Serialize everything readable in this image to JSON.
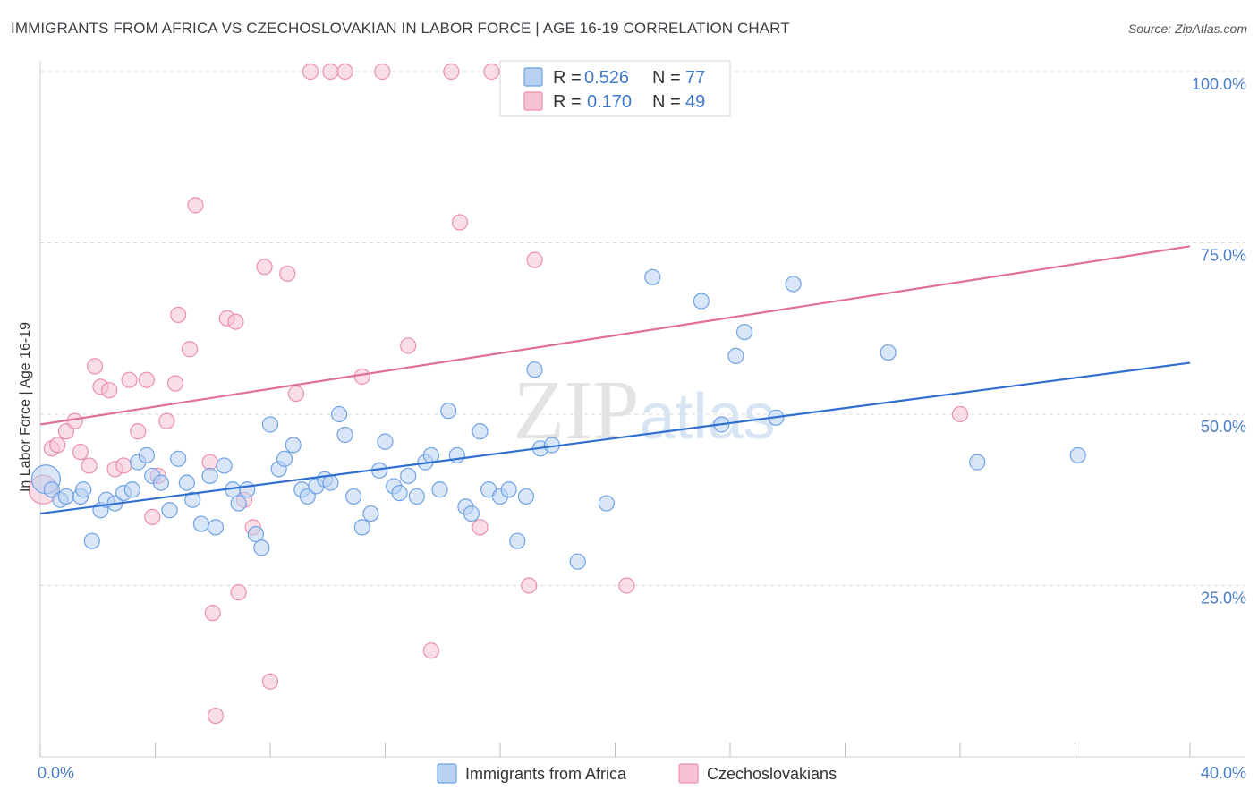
{
  "title": "IMMIGRANTS FROM AFRICA VS CZECHOSLOVAKIAN IN LABOR FORCE | AGE 16-19 CORRELATION CHART",
  "source": "Source: ZipAtlas.com",
  "colors": {
    "blue": "#6ea2e6",
    "blue_fill": "#b9d2f3",
    "blue_line": "#2f6fcf",
    "pink": "#ec8fab",
    "pink_fill": "#f6c3d2",
    "pink_line": "#e07098",
    "tick_text": "#4a7cc7",
    "grid": "#d8d8d8"
  },
  "legend": {
    "rows": [
      {
        "r_label": "R =",
        "r_value": "0.526",
        "n_label": "N =",
        "n_value": "77"
      },
      {
        "r_label": "R =",
        "r_value": "0.170",
        "n_label": "N =",
        "n_value": "49"
      }
    ]
  },
  "watermark": "ZIPatlas",
  "chart_data": {
    "type": "scatter",
    "title": "IMMIGRANTS FROM AFRICA VS CZECHOSLOVAKIAN IN LABOR FORCE | AGE 16-19 CORRELATION CHART",
    "xlabel": "",
    "ylabel": "In Labor Force | Age 16-19",
    "xlim": [
      0,
      40
    ],
    "ylim": [
      0,
      100
    ],
    "x_tick_labels": [
      "0.0%",
      "40.0%"
    ],
    "y_tick_labels": [
      "25.0%",
      "50.0%",
      "75.0%",
      "100.0%"
    ],
    "y_ticks": [
      25,
      50,
      75,
      100
    ],
    "legend_position": "bottom",
    "series": [
      {
        "name": "Immigrants from Africa",
        "color": "#6ea2e6",
        "trend": {
          "x": [
            0,
            40
          ],
          "y": [
            35.5,
            57.5
          ]
        },
        "points": [
          [
            0.2,
            40.5
          ],
          [
            0.4,
            39.0
          ],
          [
            0.7,
            37.5
          ],
          [
            0.9,
            38.0
          ],
          [
            1.4,
            38.0
          ],
          [
            1.5,
            39.0
          ],
          [
            1.8,
            31.5
          ],
          [
            2.1,
            36.0
          ],
          [
            2.3,
            37.5
          ],
          [
            2.6,
            37.0
          ],
          [
            2.9,
            38.5
          ],
          [
            3.2,
            39.0
          ],
          [
            3.4,
            43.0
          ],
          [
            3.7,
            44.0
          ],
          [
            3.9,
            41.0
          ],
          [
            4.2,
            40.0
          ],
          [
            4.5,
            36.0
          ],
          [
            4.8,
            43.5
          ],
          [
            5.1,
            40.0
          ],
          [
            5.3,
            37.5
          ],
          [
            5.6,
            34.0
          ],
          [
            5.9,
            41.0
          ],
          [
            6.1,
            33.5
          ],
          [
            6.4,
            42.5
          ],
          [
            6.7,
            39.0
          ],
          [
            6.9,
            37.0
          ],
          [
            7.2,
            39.0
          ],
          [
            7.5,
            32.5
          ],
          [
            7.7,
            30.5
          ],
          [
            8.0,
            48.5
          ],
          [
            8.3,
            42.0
          ],
          [
            8.5,
            43.5
          ],
          [
            8.8,
            45.5
          ],
          [
            9.1,
            39.0
          ],
          [
            9.3,
            38.0
          ],
          [
            9.6,
            39.5
          ],
          [
            9.9,
            40.5
          ],
          [
            10.1,
            40.0
          ],
          [
            10.4,
            50.0
          ],
          [
            10.6,
            47.0
          ],
          [
            10.9,
            38.0
          ],
          [
            11.2,
            33.5
          ],
          [
            11.5,
            35.5
          ],
          [
            11.8,
            41.8
          ],
          [
            12.0,
            46.0
          ],
          [
            12.3,
            39.5
          ],
          [
            12.5,
            38.5
          ],
          [
            12.8,
            41.0
          ],
          [
            13.1,
            38.0
          ],
          [
            13.4,
            43.0
          ],
          [
            13.6,
            44.0
          ],
          [
            13.9,
            39.0
          ],
          [
            14.2,
            50.5
          ],
          [
            14.5,
            44.0
          ],
          [
            14.8,
            36.5
          ],
          [
            15.0,
            35.5
          ],
          [
            15.3,
            47.5
          ],
          [
            15.6,
            39.0
          ],
          [
            16.0,
            38.0
          ],
          [
            16.3,
            39.0
          ],
          [
            16.6,
            31.5
          ],
          [
            16.9,
            38.0
          ],
          [
            17.2,
            56.5
          ],
          [
            17.4,
            45.0
          ],
          [
            17.8,
            45.5
          ],
          [
            18.7,
            28.5
          ],
          [
            19.7,
            37.0
          ],
          [
            21.3,
            70.0
          ],
          [
            23.0,
            66.5
          ],
          [
            23.7,
            48.5
          ],
          [
            24.2,
            58.5
          ],
          [
            24.5,
            62.0
          ],
          [
            25.6,
            49.5
          ],
          [
            26.2,
            69.0
          ],
          [
            29.5,
            59.0
          ],
          [
            32.6,
            43.0
          ],
          [
            36.1,
            44.0
          ]
        ]
      },
      {
        "name": "Czechoslovakians",
        "color": "#ec8fab",
        "trend": {
          "x": [
            0,
            40
          ],
          "y": [
            48.5,
            74.5
          ]
        },
        "points": [
          [
            0.1,
            39.0
          ],
          [
            0.4,
            45.0
          ],
          [
            0.6,
            45.5
          ],
          [
            0.9,
            47.5
          ],
          [
            1.2,
            49.0
          ],
          [
            1.4,
            44.5
          ],
          [
            1.7,
            42.5
          ],
          [
            1.9,
            57.0
          ],
          [
            2.1,
            54.0
          ],
          [
            2.4,
            53.5
          ],
          [
            2.6,
            42.0
          ],
          [
            2.9,
            42.5
          ],
          [
            3.1,
            55.0
          ],
          [
            3.4,
            47.5
          ],
          [
            3.7,
            55.0
          ],
          [
            3.9,
            35.0
          ],
          [
            4.1,
            41.0
          ],
          [
            4.4,
            49.0
          ],
          [
            4.7,
            54.5
          ],
          [
            4.8,
            64.5
          ],
          [
            5.2,
            59.5
          ],
          [
            5.4,
            80.5
          ],
          [
            5.9,
            43.0
          ],
          [
            6.0,
            21.0
          ],
          [
            6.1,
            6.0
          ],
          [
            6.5,
            64.0
          ],
          [
            6.8,
            63.5
          ],
          [
            6.9,
            24.0
          ],
          [
            7.1,
            37.5
          ],
          [
            7.4,
            33.5
          ],
          [
            7.8,
            71.5
          ],
          [
            8.0,
            11.0
          ],
          [
            8.6,
            70.5
          ],
          [
            8.9,
            53.0
          ],
          [
            9.4,
            100.0
          ],
          [
            10.1,
            100.0
          ],
          [
            10.6,
            100.0
          ],
          [
            11.2,
            55.5
          ],
          [
            11.9,
            100.0
          ],
          [
            12.8,
            60.0
          ],
          [
            13.6,
            15.5
          ],
          [
            14.3,
            100.0
          ],
          [
            14.6,
            78.0
          ],
          [
            15.3,
            33.5
          ],
          [
            15.7,
            100.0
          ],
          [
            17.0,
            25.0
          ],
          [
            17.2,
            72.5
          ],
          [
            20.4,
            25.0
          ],
          [
            32.0,
            50.0
          ]
        ]
      }
    ]
  }
}
